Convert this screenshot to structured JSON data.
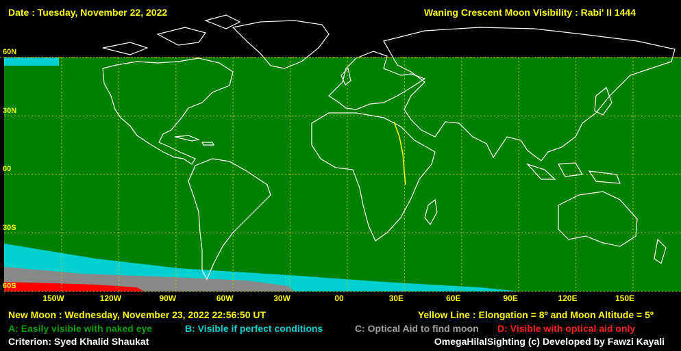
{
  "header": {
    "date": "Date : Tuesday, November 22, 2022",
    "title": "Waning Crescent Moon Visibility : Rabi' II 1444"
  },
  "lat_labels": [
    "60N",
    "30N",
    "00",
    "30S",
    "60S"
  ],
  "lon_labels": [
    "150W",
    "120W",
    "90W",
    "60W",
    "30W",
    "00",
    "30E",
    "60E",
    "90E",
    "120E",
    "150E"
  ],
  "footer": {
    "new_moon": "New Moon : Wednesday, November 23, 2022  22:56:50  UT",
    "yellow_line": "Yellow Line : Elongation = 8º  and Moon Altitude = 5º",
    "legend_a": "A: Easily visible with naked eye",
    "legend_b": "B: Visible if perfect conditions",
    "legend_c": "C: Optical Aid to find moon",
    "legend_d": "D: Visible with optical aid only",
    "criterion": "Criterion: Syed Khalid Shaukat",
    "credit": "OmegaHilalSighting  (c)  Developed by Fawzi Kayali"
  },
  "colors": {
    "zone_a": "#008000",
    "zone_b": "#00d0d0",
    "zone_c": "#888888",
    "zone_d": "#ff0000",
    "grid": "#c8c800",
    "coast": "#ffffff",
    "border": "#888888",
    "header_text": "#ffff00",
    "label_text": "#ffff00"
  }
}
